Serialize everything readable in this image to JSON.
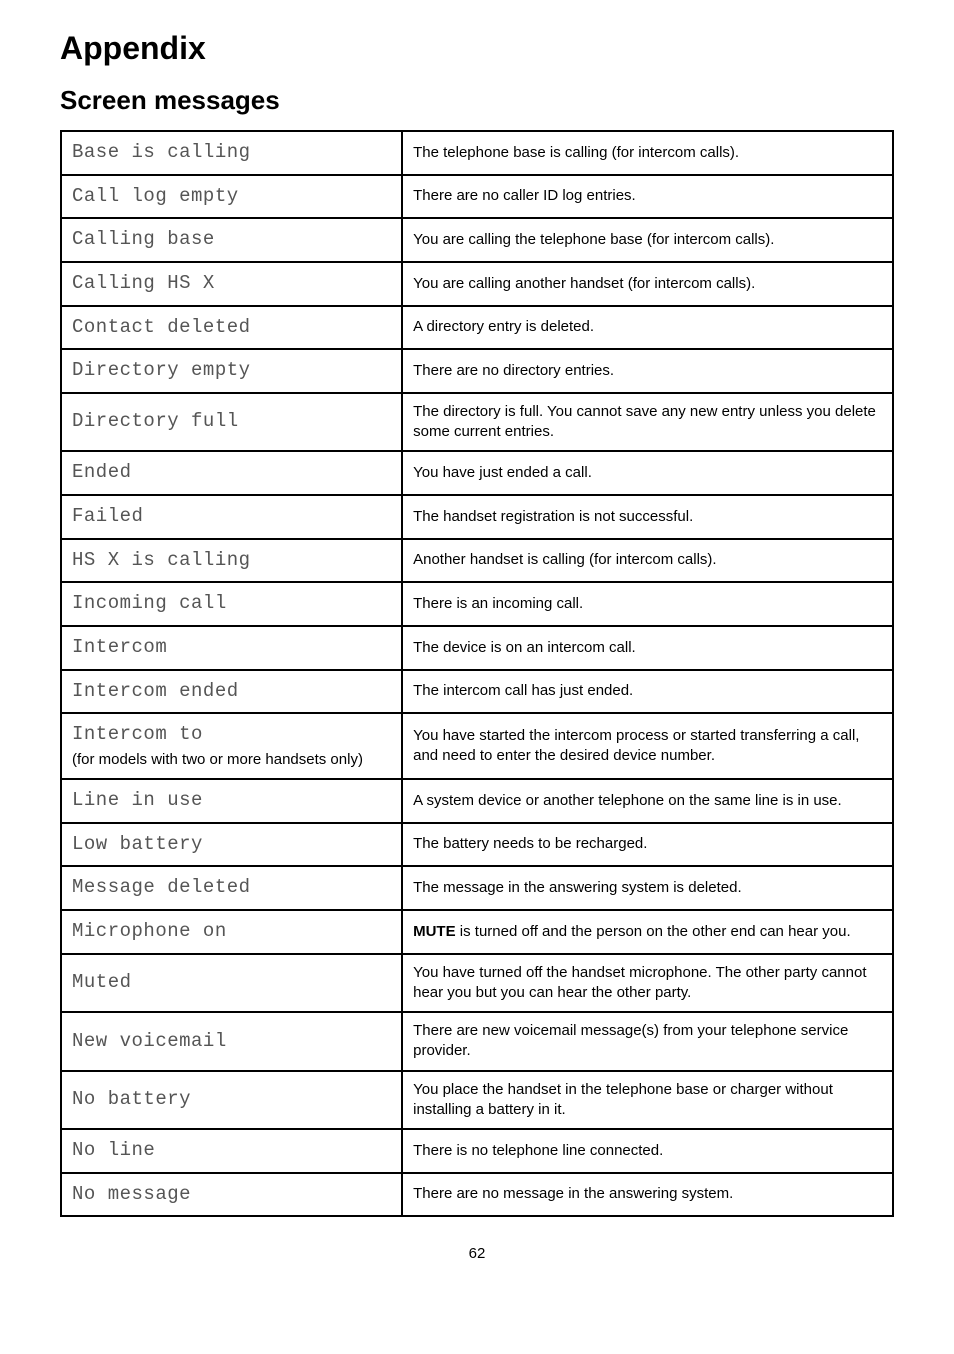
{
  "title": "Appendix",
  "section": "Screen messages",
  "rows": [
    {
      "screen": "Base is calling",
      "desc": "The telephone base is calling (for intercom calls)."
    },
    {
      "screen": "Call log empty",
      "desc": "There are no caller ID log entries."
    },
    {
      "screen": "Calling base",
      "desc": "You are calling the telephone base (for intercom calls)."
    },
    {
      "screen": "Calling HS X",
      "desc": "You are calling another handset (for intercom calls)."
    },
    {
      "screen": "Contact deleted",
      "desc": "A directory entry is deleted."
    },
    {
      "screen": "Directory empty",
      "desc": "There are no directory entries."
    },
    {
      "screen": "Directory full",
      "desc": "The directory is full. You cannot save any new entry unless you delete some current entries."
    },
    {
      "screen": "Ended",
      "desc": "You have just ended a call."
    },
    {
      "screen": "Failed",
      "desc": "The handset registration is not successful."
    },
    {
      "screen": "HS X is calling",
      "desc": "Another handset is calling (for intercom calls)."
    },
    {
      "screen": "Incoming call",
      "desc": "There is an incoming call."
    },
    {
      "screen": "Intercom",
      "desc": "The device is on an intercom call."
    },
    {
      "screen": "Intercom ended",
      "desc": "The intercom call has just ended."
    },
    {
      "screen": "Intercom to",
      "sub": "(for models with two or more handsets only)",
      "desc": "You have started the intercom process or started transferring a call, and need to enter the desired device number."
    },
    {
      "screen": "Line in use",
      "desc": "A system device or another telephone on the same line is in use."
    },
    {
      "screen": "Low battery",
      "desc": "The battery needs to be recharged."
    },
    {
      "screen": "Message deleted",
      "desc": "The message in the answering system is deleted."
    },
    {
      "screen": "Microphone on",
      "desc_pre": "",
      "desc_bold": "MUTE",
      "desc_post": " is turned off and the person on the other end can hear you."
    },
    {
      "screen": "Muted",
      "desc": "You have turned off the handset microphone. The other party cannot hear you but you can hear the other party."
    },
    {
      "screen": "New voicemail",
      "desc": "There are new voicemail message(s) from your telephone service provider."
    },
    {
      "screen": "No battery",
      "desc": "You place the handset in the telephone base or charger without installing a battery in it."
    },
    {
      "screen": "No line",
      "desc": "There is no telephone line connected."
    },
    {
      "screen": "No message",
      "desc": "There are no message in the answering system."
    }
  ],
  "pageNumber": "62"
}
